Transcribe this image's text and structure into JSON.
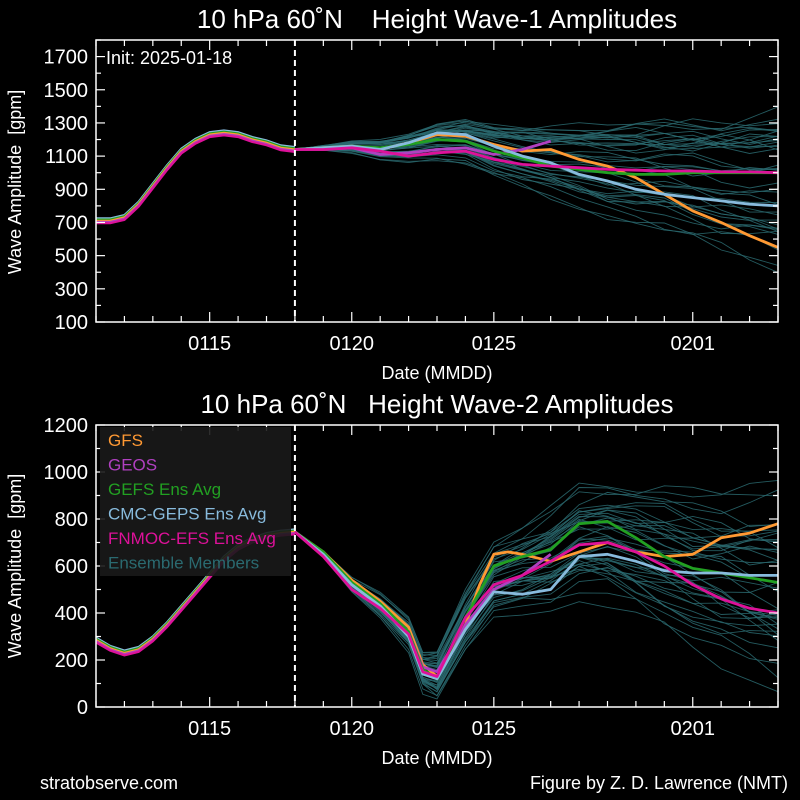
{
  "footer": {
    "left": "stratobserve.com",
    "right": "Figure by Z. D. Lawrence (NMT)"
  },
  "colors": {
    "background": "#000000",
    "GFS": "#ff9933",
    "GEOS": "#b040c0",
    "GEFS Ens Avg": "#22a022",
    "CMC-GEPS Ens Avg": "#88bbdd",
    "FNMOC-EFS Ens Avg": "#dd1199",
    "Ensemble Members": "#2a6a70"
  },
  "chart_data": [
    {
      "type": "line",
      "title": "10 hPa 60˚N    Height Wave-1 Amplitudes",
      "xlabel": "Date (MMDD)",
      "ylabel": "Wave Amplitude  [gpm]",
      "annotation": "Init: 2025-01-18",
      "init_day": 18,
      "xlim": [
        11,
        35
      ],
      "ylim": [
        100,
        1800
      ],
      "yticks": [
        100,
        300,
        500,
        700,
        900,
        1100,
        1300,
        1500,
        1700
      ],
      "xticks": [
        {
          "x": 15,
          "label": "0115"
        },
        {
          "x": 20,
          "label": "0120"
        },
        {
          "x": 25,
          "label": "0125"
        },
        {
          "x": 32,
          "label": "0201"
        }
      ],
      "grid": false,
      "legend": "none",
      "history": {
        "x": [
          11,
          11.5,
          12,
          12.5,
          13,
          13.5,
          14,
          14.5,
          15,
          15.5,
          16,
          16.5,
          17,
          17.5,
          18
        ],
        "y": [
          710,
          710,
          730,
          810,
          920,
          1030,
          1130,
          1190,
          1230,
          1240,
          1230,
          1200,
          1180,
          1150,
          1140
        ]
      },
      "series": [
        {
          "name": "GFS",
          "x": [
            18,
            19,
            20,
            21,
            22,
            23,
            24,
            25,
            26,
            27,
            28,
            29,
            30,
            31,
            32,
            33,
            34,
            35
          ],
          "y": [
            1140,
            1150,
            1160,
            1140,
            1180,
            1230,
            1220,
            1170,
            1130,
            1140,
            1080,
            1040,
            970,
            870,
            770,
            700,
            620,
            550
          ]
        },
        {
          "name": "GEOS",
          "x": [
            18,
            19,
            20,
            21,
            22,
            23,
            24,
            25,
            26,
            27
          ],
          "y": [
            1140,
            1140,
            1150,
            1110,
            1120,
            1140,
            1150,
            1110,
            1140,
            1190
          ]
        },
        {
          "name": "GEFS Ens Avg",
          "x": [
            18,
            19,
            20,
            21,
            22,
            23,
            24,
            25,
            26,
            27,
            28,
            29,
            30,
            31,
            32,
            33,
            34,
            35
          ],
          "y": [
            1140,
            1150,
            1160,
            1150,
            1170,
            1200,
            1190,
            1130,
            1090,
            1040,
            1020,
            1000,
            990,
            990,
            1000,
            1000,
            1000,
            1000
          ]
        },
        {
          "name": "CMC-GEPS Ens Avg",
          "x": [
            18,
            19,
            20,
            21,
            22,
            23,
            24,
            25,
            26,
            27,
            28,
            29,
            30,
            31,
            32,
            33,
            34,
            35
          ],
          "y": [
            1140,
            1150,
            1160,
            1140,
            1180,
            1240,
            1230,
            1160,
            1100,
            1060,
            990,
            950,
            900,
            870,
            850,
            830,
            810,
            800
          ]
        },
        {
          "name": "FNMOC-EFS Ens Avg",
          "x": [
            18,
            19,
            20,
            21,
            22,
            23,
            24,
            25,
            26,
            27,
            28,
            29,
            30,
            31,
            32,
            33,
            34,
            35
          ],
          "y": [
            1140,
            1140,
            1150,
            1130,
            1100,
            1120,
            1130,
            1080,
            1050,
            1040,
            1030,
            1020,
            1015,
            1010,
            1010,
            1005,
            1005,
            1000
          ]
        }
      ],
      "ensemble": {
        "name": "Ensemble Members",
        "x": [
          18,
          19,
          20,
          21,
          22,
          23,
          24,
          25,
          26,
          27,
          28,
          29,
          30,
          31,
          32,
          33,
          34,
          35
        ],
        "mean": [
          1140,
          1150,
          1155,
          1140,
          1150,
          1180,
          1180,
          1130,
          1100,
          1070,
          1040,
          1010,
          990,
          970,
          950,
          930,
          920,
          900
        ],
        "spread_end": 450,
        "count": 40
      }
    },
    {
      "type": "line",
      "title": "10 hPa 60˚N   Height Wave-2 Amplitudes",
      "xlabel": "Date (MMDD)",
      "ylabel": "Wave Amplitude  [gpm]",
      "init_day": 18,
      "xlim": [
        11,
        35
      ],
      "ylim": [
        0,
        1200
      ],
      "yticks": [
        0,
        200,
        400,
        600,
        800,
        1000,
        1200
      ],
      "xticks": [
        {
          "x": 15,
          "label": "0115"
        },
        {
          "x": 20,
          "label": "0120"
        },
        {
          "x": 25,
          "label": "0125"
        },
        {
          "x": 32,
          "label": "0201"
        }
      ],
      "grid": false,
      "legend": "top-left",
      "legend_items": [
        "GFS",
        "GEOS",
        "GEFS Ens Avg",
        "CMC-GEPS Ens Avg",
        "FNMOC-EFS Ens Avg",
        "Ensemble Members"
      ],
      "history": {
        "x": [
          11,
          11.5,
          12,
          12.5,
          13,
          13.5,
          14,
          14.5,
          15,
          15.5,
          16,
          16.5,
          17,
          17.5,
          18
        ],
        "y": [
          285,
          250,
          230,
          245,
          290,
          350,
          420,
          490,
          560,
          630,
          680,
          710,
          730,
          740,
          745
        ]
      },
      "series": [
        {
          "name": "GFS",
          "x": [
            18,
            19,
            20,
            21,
            22,
            22.5,
            23,
            24,
            24.5,
            25,
            25.5,
            26,
            27,
            28,
            29,
            30,
            31,
            32,
            33,
            34,
            35
          ],
          "y": [
            745,
            660,
            540,
            450,
            340,
            180,
            130,
            350,
            520,
            650,
            660,
            650,
            620,
            660,
            700,
            660,
            640,
            650,
            720,
            740,
            780
          ]
        },
        {
          "name": "GEOS",
          "x": [
            18,
            19,
            20,
            21,
            22,
            22.5,
            23,
            24,
            25,
            26,
            27
          ],
          "y": [
            745,
            650,
            520,
            430,
            320,
            170,
            150,
            350,
            500,
            560,
            650
          ]
        },
        {
          "name": "GEFS Ens Avg",
          "x": [
            18,
            19,
            20,
            21,
            22,
            22.5,
            23,
            24,
            25,
            26,
            27,
            28,
            29,
            30,
            31,
            32,
            33,
            34,
            35
          ],
          "y": [
            745,
            660,
            530,
            440,
            320,
            160,
            120,
            380,
            600,
            640,
            670,
            780,
            790,
            720,
            640,
            590,
            570,
            550,
            530
          ]
        },
        {
          "name": "CMC-GEPS Ens Avg",
          "x": [
            18,
            19,
            20,
            21,
            22,
            22.5,
            23,
            24,
            25,
            26,
            27,
            28,
            29,
            30,
            31,
            32,
            33,
            34,
            35
          ],
          "y": [
            745,
            650,
            520,
            430,
            300,
            140,
            120,
            330,
            490,
            480,
            500,
            640,
            650,
            620,
            580,
            570,
            570,
            560,
            560
          ]
        },
        {
          "name": "FNMOC-EFS Ens Avg",
          "x": [
            18,
            19,
            20,
            21,
            22,
            22.5,
            23,
            24,
            25,
            26,
            27,
            28,
            29,
            30,
            31,
            32,
            33,
            34,
            35
          ],
          "y": [
            745,
            640,
            500,
            420,
            310,
            150,
            130,
            380,
            520,
            560,
            620,
            690,
            700,
            660,
            600,
            520,
            460,
            420,
            400
          ]
        }
      ],
      "ensemble": {
        "name": "Ensemble Members",
        "x": [
          18,
          19,
          20,
          21,
          22,
          22.5,
          23,
          24,
          25,
          26,
          27,
          28,
          29,
          30,
          31,
          32,
          33,
          34,
          35
        ],
        "mean": [
          745,
          650,
          520,
          430,
          310,
          150,
          130,
          360,
          540,
          580,
          620,
          700,
          700,
          660,
          620,
          580,
          550,
          520,
          500
        ],
        "spread_end": 420,
        "count": 40
      }
    }
  ]
}
